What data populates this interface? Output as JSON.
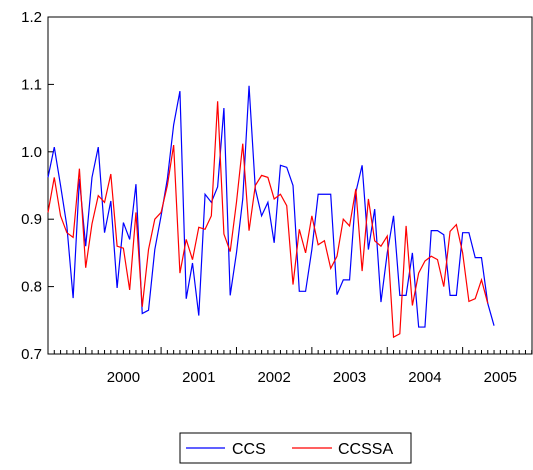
{
  "chart_data": {
    "type": "line",
    "title": "",
    "xlabel": "",
    "ylabel": "",
    "ylim": [
      0.7,
      1.2
    ],
    "yticks": [
      "0.7",
      "0.8",
      "0.9",
      "1.0",
      "1.1",
      "1.2"
    ],
    "xlim": [
      1999.5,
      2005.92
    ],
    "xticks": [
      "2000",
      "2001",
      "2002",
      "2003",
      "2004",
      "2005"
    ],
    "grid": false,
    "legend_position": "bottom-center",
    "series": [
      {
        "name": "CCS",
        "color": "#0000ff",
        "values": [
          0.962,
          1.007,
          0.95,
          0.89,
          0.783,
          0.96,
          0.86,
          0.962,
          1.007,
          0.88,
          0.927,
          0.798,
          0.895,
          0.87,
          0.952,
          0.76,
          0.765,
          0.855,
          0.905,
          0.96,
          1.04,
          1.09,
          0.782,
          0.835,
          0.757,
          0.937,
          0.925,
          0.948,
          1.065,
          0.787,
          0.85,
          0.93,
          1.098,
          0.945,
          0.905,
          0.925,
          0.865,
          0.98,
          0.977,
          0.95,
          0.793,
          0.793,
          0.855,
          0.937,
          0.937,
          0.937,
          0.788,
          0.81,
          0.81,
          0.94,
          0.98,
          0.855,
          0.915,
          0.777,
          0.85,
          0.905,
          0.787,
          0.787,
          0.85,
          0.74,
          0.74,
          0.883,
          0.883,
          0.877,
          0.787,
          0.787,
          0.88,
          0.88,
          0.843,
          0.843,
          0.775,
          0.742
        ]
      },
      {
        "name": "CCSSA",
        "color": "#ff0000",
        "values": [
          0.91,
          0.962,
          0.905,
          0.88,
          0.873,
          0.975,
          0.828,
          0.893,
          0.935,
          0.925,
          0.967,
          0.86,
          0.857,
          0.795,
          0.91,
          0.77,
          0.855,
          0.9,
          0.91,
          0.95,
          1.01,
          0.82,
          0.87,
          0.84,
          0.888,
          0.885,
          0.905,
          1.075,
          0.878,
          0.852,
          0.925,
          1.012,
          0.883,
          0.95,
          0.965,
          0.962,
          0.93,
          0.937,
          0.92,
          0.803,
          0.885,
          0.85,
          0.905,
          0.862,
          0.868,
          0.827,
          0.845,
          0.9,
          0.89,
          0.945,
          0.823,
          0.93,
          0.868,
          0.86,
          0.875,
          0.725,
          0.73,
          0.89,
          0.772,
          0.82,
          0.838,
          0.845,
          0.84,
          0.8,
          0.882,
          0.892,
          0.85,
          0.778,
          0.782,
          0.81,
          0.775
        ]
      }
    ]
  }
}
